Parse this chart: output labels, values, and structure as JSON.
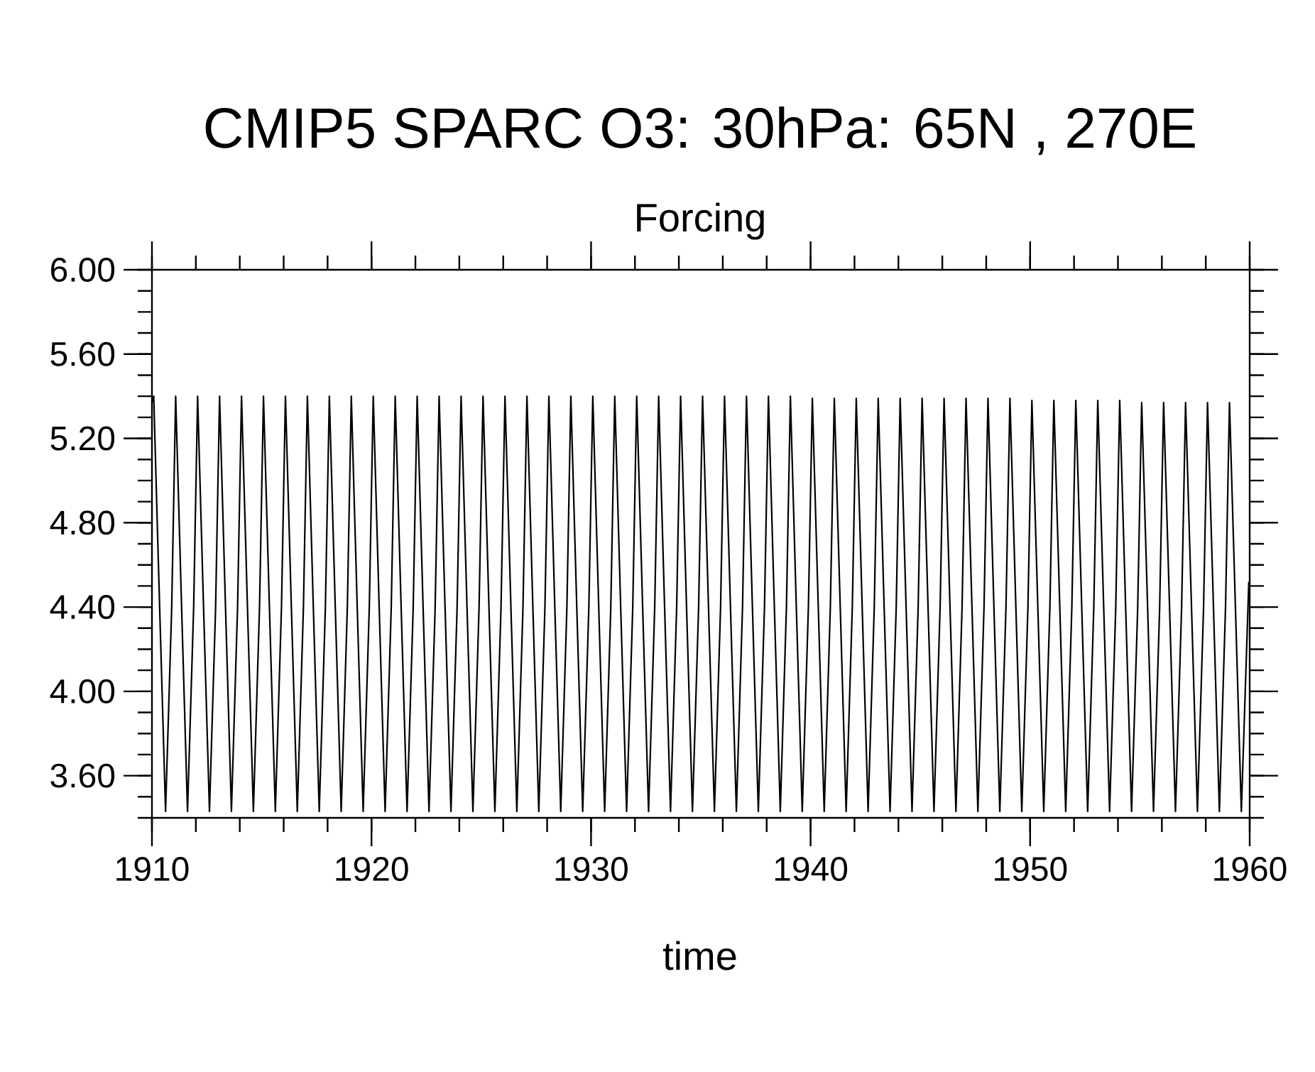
{
  "chart_data": {
    "type": "line",
    "title": "CMIP5 SPARC O3: 30hPa: 65N , 270E",
    "subtitle": "Forcing",
    "xlabel": "time",
    "xlim": [
      1910,
      1960
    ],
    "ylim": [
      3.4,
      6.0
    ],
    "xticks": [
      1910,
      1920,
      1930,
      1940,
      1950,
      1960
    ],
    "yticks": [
      {
        "value": 3.6,
        "label": "3.60"
      },
      {
        "value": 4.0,
        "label": "4.00"
      },
      {
        "value": 4.4,
        "label": "4.40"
      },
      {
        "value": 4.8,
        "label": "4.80"
      },
      {
        "value": 5.2,
        "label": "5.20"
      },
      {
        "value": 5.6,
        "label": "5.60"
      },
      {
        "value": 6.0,
        "label": "6.00"
      }
    ],
    "grid": false,
    "marker": "none",
    "line_style": "solid",
    "color": "#000000",
    "x": [
      1910.0,
      1910.08,
      1910.35,
      1910.62,
      1910.9,
      1911.08,
      1911.35,
      1911.62,
      1911.9,
      1912.08,
      1912.35,
      1912.62,
      1912.9,
      1913.08,
      1913.35,
      1913.62,
      1913.9,
      1914.08,
      1914.35,
      1914.62,
      1914.9,
      1915.08,
      1915.35,
      1915.62,
      1915.9,
      1916.08,
      1916.35,
      1916.62,
      1916.9,
      1917.08,
      1917.35,
      1917.62,
      1917.9,
      1918.08,
      1918.35,
      1918.62,
      1918.9,
      1919.08,
      1919.35,
      1919.62,
      1919.9,
      1920.08,
      1920.35,
      1920.62,
      1920.9,
      1921.08,
      1921.35,
      1921.62,
      1921.9,
      1922.08,
      1922.35,
      1922.62,
      1922.9,
      1923.08,
      1923.35,
      1923.62,
      1923.9,
      1924.08,
      1924.35,
      1924.62,
      1924.9,
      1925.08,
      1925.35,
      1925.62,
      1925.9,
      1926.08,
      1926.35,
      1926.62,
      1926.9,
      1927.08,
      1927.35,
      1927.62,
      1927.9,
      1928.08,
      1928.35,
      1928.62,
      1928.9,
      1929.08,
      1929.35,
      1929.62,
      1929.9,
      1930.08,
      1930.35,
      1930.62,
      1930.9,
      1931.08,
      1931.35,
      1931.62,
      1931.9,
      1932.08,
      1932.35,
      1932.62,
      1932.9,
      1933.08,
      1933.35,
      1933.62,
      1933.9,
      1934.08,
      1934.35,
      1934.62,
      1934.9,
      1935.08,
      1935.35,
      1935.62,
      1935.9,
      1936.08,
      1936.35,
      1936.62,
      1936.9,
      1937.08,
      1937.35,
      1937.62,
      1937.9,
      1938.08,
      1938.35,
      1938.62,
      1938.9,
      1939.08,
      1939.35,
      1939.62,
      1939.9,
      1940.08,
      1940.35,
      1940.62,
      1940.9,
      1941.08,
      1941.35,
      1941.62,
      1941.9,
      1942.08,
      1942.35,
      1942.62,
      1942.9,
      1943.08,
      1943.35,
      1943.62,
      1943.9,
      1944.08,
      1944.35,
      1944.62,
      1944.9,
      1945.08,
      1945.35,
      1945.62,
      1945.9,
      1946.08,
      1946.35,
      1946.62,
      1946.9,
      1947.08,
      1947.35,
      1947.62,
      1947.9,
      1948.08,
      1948.35,
      1948.62,
      1948.9,
      1949.08,
      1949.35,
      1949.62,
      1949.9,
      1950.08,
      1950.35,
      1950.62,
      1950.9,
      1951.08,
      1951.35,
      1951.62,
      1951.9,
      1952.08,
      1952.35,
      1952.62,
      1952.9,
      1953.08,
      1953.35,
      1953.62,
      1953.9,
      1954.08,
      1954.35,
      1954.62,
      1954.9,
      1955.08,
      1955.35,
      1955.62,
      1955.9,
      1956.08,
      1956.35,
      1956.62,
      1956.9,
      1957.08,
      1957.35,
      1957.62,
      1957.9,
      1958.08,
      1958.35,
      1958.62,
      1958.9,
      1959.08,
      1959.35,
      1959.62,
      1959.96
    ],
    "values": [
      5.37,
      5.4,
      4.4,
      3.43,
      4.4,
      5.4,
      4.4,
      3.43,
      4.4,
      5.4,
      4.4,
      3.43,
      4.4,
      5.4,
      4.4,
      3.43,
      4.4,
      5.4,
      4.4,
      3.43,
      4.4,
      5.4,
      4.4,
      3.43,
      4.4,
      5.4,
      4.4,
      3.43,
      4.4,
      5.4,
      4.4,
      3.43,
      4.4,
      5.4,
      4.4,
      3.43,
      4.4,
      5.4,
      4.4,
      3.43,
      4.4,
      5.4,
      4.4,
      3.43,
      4.4,
      5.4,
      4.4,
      3.43,
      4.4,
      5.4,
      4.4,
      3.43,
      4.4,
      5.4,
      4.4,
      3.43,
      4.4,
      5.4,
      4.4,
      3.43,
      4.4,
      5.4,
      4.4,
      3.43,
      4.4,
      5.4,
      4.4,
      3.43,
      4.4,
      5.4,
      4.4,
      3.43,
      4.4,
      5.4,
      4.4,
      3.43,
      4.4,
      5.4,
      4.4,
      3.43,
      4.4,
      5.4,
      4.4,
      3.43,
      4.4,
      5.4,
      4.4,
      3.43,
      4.4,
      5.4,
      4.4,
      3.43,
      4.4,
      5.4,
      4.4,
      3.43,
      4.4,
      5.4,
      4.4,
      3.43,
      4.4,
      5.4,
      4.4,
      3.43,
      4.4,
      5.4,
      4.4,
      3.43,
      4.4,
      5.4,
      4.4,
      3.43,
      4.4,
      5.4,
      4.4,
      3.43,
      4.4,
      5.4,
      4.4,
      3.43,
      4.4,
      5.39,
      4.4,
      3.43,
      4.4,
      5.39,
      4.4,
      3.43,
      4.4,
      5.39,
      4.4,
      3.43,
      4.4,
      5.39,
      4.4,
      3.43,
      4.4,
      5.39,
      4.4,
      3.43,
      4.4,
      5.39,
      4.4,
      3.43,
      4.4,
      5.39,
      4.4,
      3.43,
      4.4,
      5.39,
      4.4,
      3.43,
      4.4,
      5.39,
      4.4,
      3.43,
      4.4,
      5.39,
      4.4,
      3.43,
      4.4,
      5.38,
      4.4,
      3.43,
      4.4,
      5.38,
      4.4,
      3.43,
      4.4,
      5.38,
      4.4,
      3.43,
      4.4,
      5.38,
      4.4,
      3.43,
      4.4,
      5.38,
      4.4,
      3.43,
      4.4,
      5.37,
      4.4,
      3.43,
      4.4,
      5.37,
      4.4,
      3.43,
      4.4,
      5.37,
      4.4,
      3.43,
      4.4,
      5.37,
      4.4,
      3.43,
      4.4,
      5.37,
      4.4,
      3.43,
      4.52
    ]
  }
}
